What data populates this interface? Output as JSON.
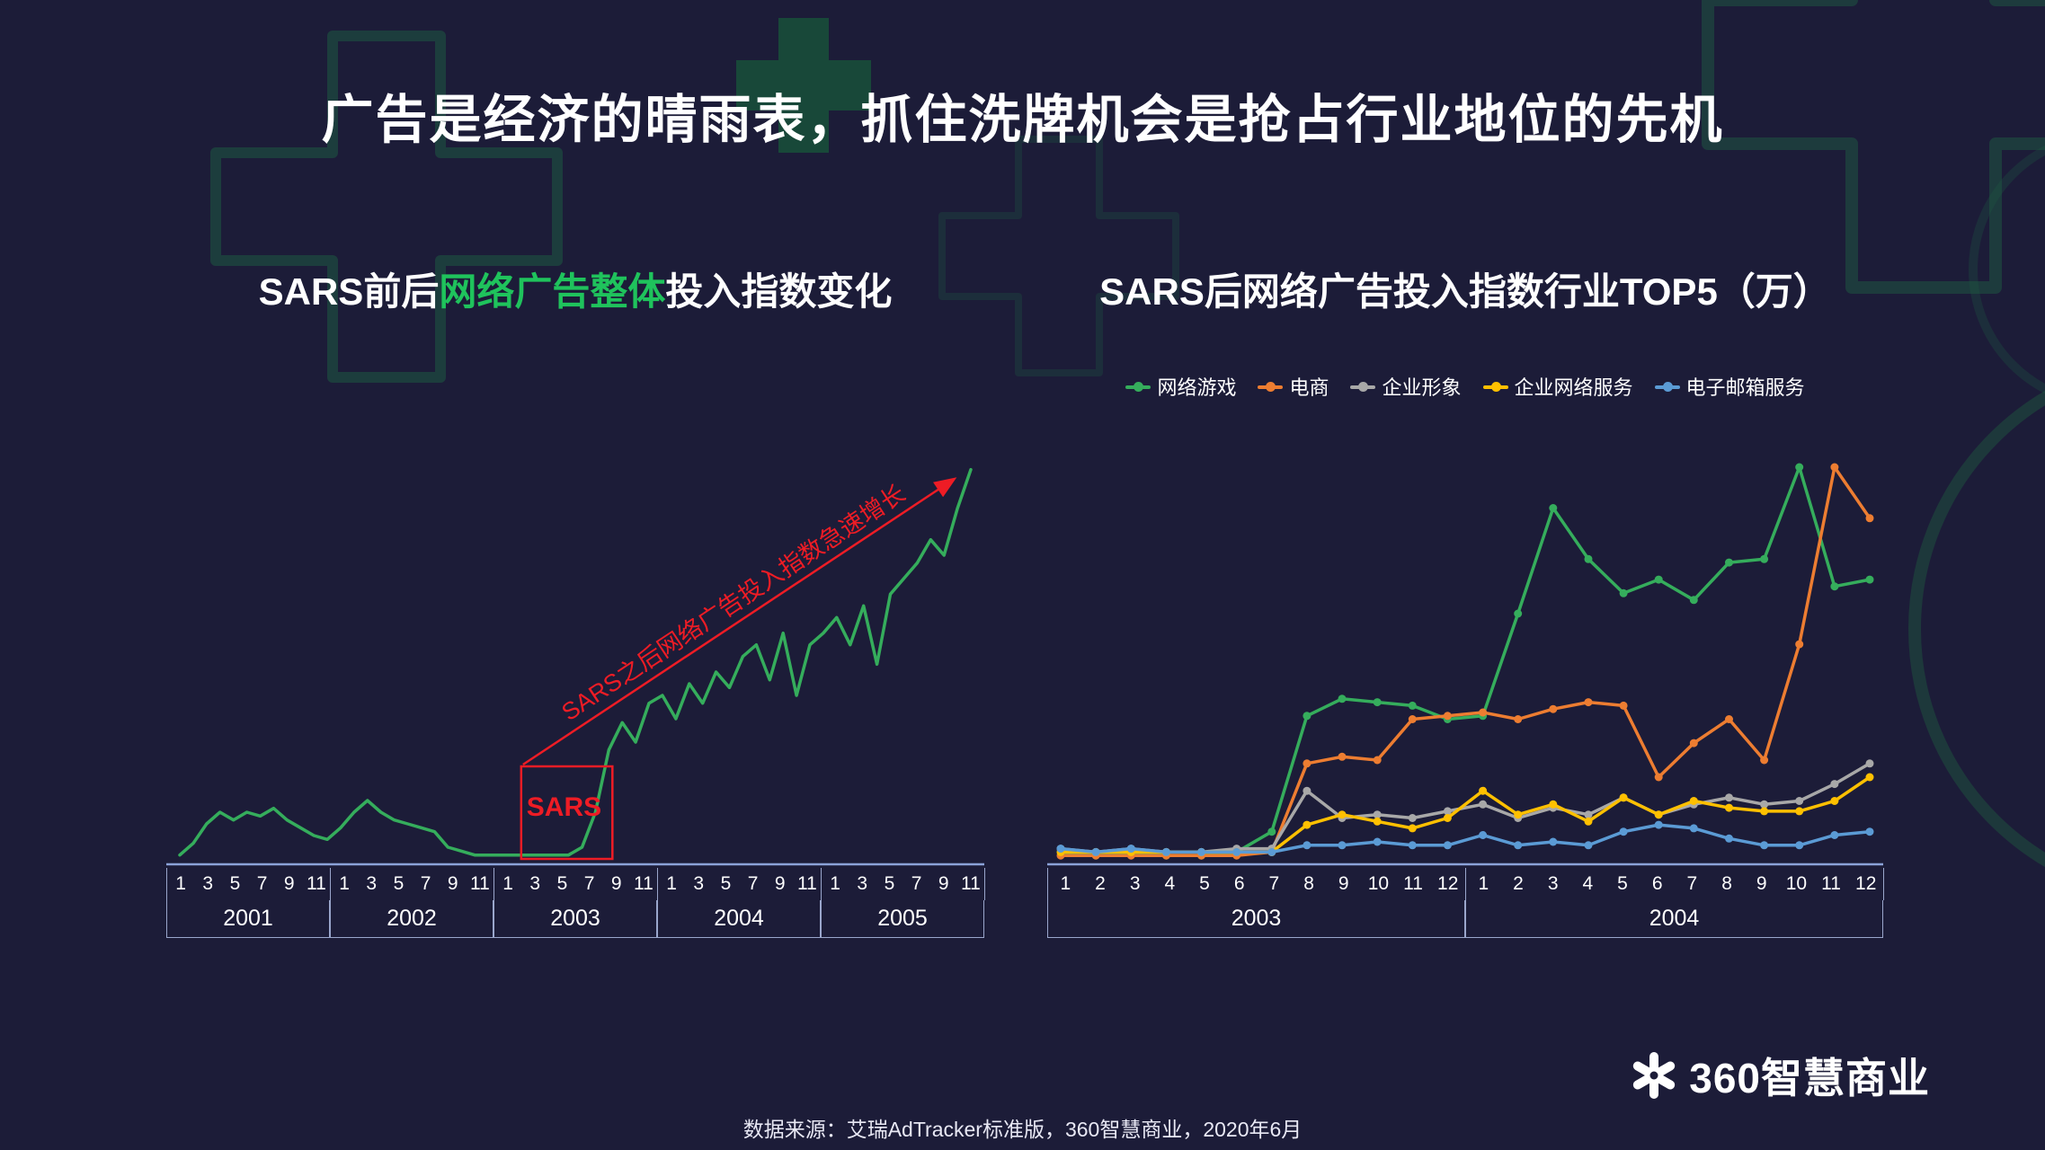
{
  "title": "广告是经济的晴雨表，抓住洗牌机会是抢占行业地位的先机",
  "left_chart": {
    "title_prefix": "SARS前后",
    "title_highlight": "网络广告整体",
    "title_suffix": "投入指数变化",
    "highlight_color": "#1fc35c",
    "annotation": {
      "box_label": "SARS",
      "arrow_label": "SARS之后网络广告投入指数急速增长",
      "color": "#ee1c25"
    }
  },
  "right_chart": {
    "title": "SARS后网络广告投入指数行业TOP5（万）"
  },
  "chart_data": [
    {
      "type": "line",
      "title": "SARS前后网络广告整体投入指数变化",
      "axis_color": "#8ba2d8",
      "grid": false,
      "ylim": [
        0,
        105
      ],
      "years": [
        {
          "label": "2001",
          "months": [
            "1",
            "3",
            "5",
            "7",
            "9",
            "11"
          ]
        },
        {
          "label": "2002",
          "months": [
            "1",
            "3",
            "5",
            "7",
            "9",
            "11"
          ]
        },
        {
          "label": "2003",
          "months": [
            "1",
            "3",
            "5",
            "7",
            "9",
            "11"
          ]
        },
        {
          "label": "2004",
          "months": [
            "1",
            "3",
            "5",
            "7",
            "9",
            "11"
          ]
        },
        {
          "label": "2005",
          "months": [
            "1",
            "3",
            "5",
            "7",
            "9",
            "11"
          ]
        }
      ],
      "series": [
        {
          "name": "网络广告整体投入指数",
          "color": "#35ad5c",
          "values": [
            1,
            4,
            9,
            12,
            10,
            12,
            11,
            13,
            10,
            8,
            6,
            5,
            8,
            12,
            15,
            12,
            10,
            9,
            8,
            7,
            3,
            2,
            1,
            1,
            1,
            1,
            1,
            1,
            1,
            1,
            3,
            12,
            28,
            35,
            30,
            40,
            42,
            36,
            45,
            40,
            48,
            44,
            52,
            55,
            46,
            58,
            42,
            55,
            58,
            62,
            55,
            65,
            50,
            68,
            72,
            76,
            82,
            78,
            90,
            100
          ]
        }
      ]
    },
    {
      "type": "line",
      "title": "SARS后网络广告投入指数行业TOP5（万）",
      "axis_color": "#8ba2d8",
      "grid": false,
      "legend_position": "top",
      "ylim": [
        0,
        120
      ],
      "years": [
        {
          "label": "2003",
          "months": [
            "1",
            "2",
            "3",
            "4",
            "5",
            "6",
            "7",
            "8",
            "9",
            "10",
            "11",
            "12"
          ]
        },
        {
          "label": "2004",
          "months": [
            "1",
            "2",
            "3",
            "4",
            "5",
            "6",
            "7",
            "8",
            "9",
            "10",
            "11",
            "12"
          ]
        }
      ],
      "series": [
        {
          "name": "网络游戏",
          "color": "#35ad5c",
          "values": [
            2,
            1,
            2,
            1,
            1,
            2,
            8,
            42,
            47,
            46,
            45,
            41,
            42,
            72,
            103,
            88,
            78,
            82,
            76,
            87,
            88,
            115,
            80,
            82
          ]
        },
        {
          "name": "电商",
          "color": "#ed7d31",
          "values": [
            1,
            1,
            1,
            1,
            1,
            1,
            2,
            28,
            30,
            29,
            41,
            42,
            43,
            41,
            44,
            46,
            45,
            24,
            34,
            41,
            29,
            63,
            115,
            100
          ]
        },
        {
          "name": "企业形象",
          "color": "#a8a8a8",
          "values": [
            3,
            2,
            3,
            2,
            2,
            3,
            3,
            20,
            12,
            13,
            12,
            14,
            16,
            12,
            15,
            13,
            18,
            13,
            16,
            18,
            16,
            17,
            22,
            28
          ]
        },
        {
          "name": "企业网络服务",
          "color": "#ffc000",
          "values": [
            2,
            2,
            2,
            2,
            2,
            2,
            2,
            10,
            13,
            11,
            9,
            12,
            20,
            13,
            16,
            11,
            18,
            13,
            17,
            15,
            14,
            14,
            17,
            24
          ]
        },
        {
          "name": "电子邮箱服务",
          "color": "#5b9bd5",
          "values": [
            3,
            2,
            3,
            2,
            2,
            2,
            2,
            4,
            4,
            5,
            4,
            4,
            7,
            4,
            5,
            4,
            8,
            10,
            9,
            6,
            4,
            4,
            7,
            8
          ]
        }
      ]
    }
  ],
  "footer": {
    "source": "数据来源：艾瑞AdTracker标准版，360智慧商业，2020年6月"
  },
  "logo": {
    "label": "360智慧商业"
  }
}
